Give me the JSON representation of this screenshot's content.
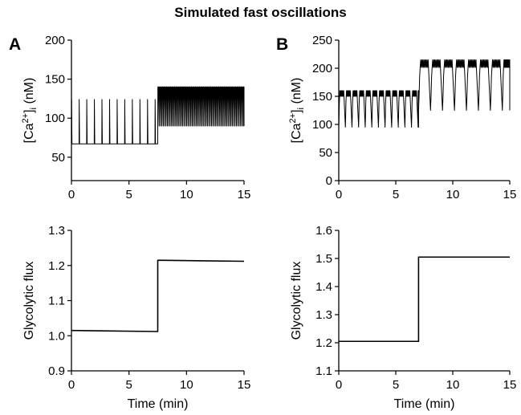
{
  "figure_title": "Simulated fast oscillations",
  "panel_labels": [
    "A",
    "B"
  ],
  "colors": {
    "line": "#000000",
    "background": "#ffffff"
  },
  "chart_data": [
    {
      "id": "A-top",
      "type": "line",
      "ylabel_main": "[Ca",
      "ylabel_sup": "2+",
      "ylabel_mid": "]",
      "ylabel_sub": "i",
      "ylabel_end": " (nM)",
      "xlabel": "",
      "xlim": [
        0,
        15
      ],
      "ylim": [
        20,
        200
      ],
      "xticks": [
        0,
        5,
        10,
        15
      ],
      "yticks": [
        50,
        100,
        150,
        200
      ],
      "series": [
        {
          "phases": [
            {
              "t_start": 0.0,
              "t_end": 7.5,
              "baseline": 67,
              "peak": 124,
              "period": 0.66,
              "burst_fraction": 0.07
            },
            {
              "t_start": 7.5,
              "t_end": 15.0,
              "baseline": 90,
              "peak": 140,
              "period": 0.12,
              "burst_fraction": 0.5
            }
          ]
        }
      ]
    },
    {
      "id": "B-top",
      "type": "line",
      "ylabel_main": "[Ca",
      "ylabel_sup": "2+",
      "ylabel_mid": "]",
      "ylabel_sub": "i",
      "ylabel_end": " (nM)",
      "xlabel": "",
      "xlim": [
        0,
        15
      ],
      "ylim": [
        0,
        250
      ],
      "xticks": [
        0,
        5,
        10,
        15
      ],
      "yticks": [
        0,
        50,
        100,
        150,
        200,
        250
      ],
      "series": [
        {
          "phases": [
            {
              "t_start": 0.0,
              "t_end": 7.0,
              "baseline": 95,
              "peak": 160,
              "period": 0.58,
              "burst_fraction": 0.75
            },
            {
              "t_start": 7.0,
              "t_end": 15.0,
              "baseline": 125,
              "peak": 215,
              "period": 1.05,
              "burst_fraction": 0.8
            }
          ]
        }
      ]
    },
    {
      "id": "A-bottom",
      "type": "line",
      "ylabel": "Glycolytic flux",
      "xlabel": "Time (min)",
      "xlim": [
        0,
        15
      ],
      "ylim": [
        0.9,
        1.3
      ],
      "xticks": [
        0,
        5,
        10,
        15
      ],
      "yticks": [
        0.9,
        1.0,
        1.1,
        1.2,
        1.3
      ],
      "series": [
        {
          "x": [
            0,
            7.5,
            7.5,
            15
          ],
          "y": [
            1.015,
            1.012,
            1.215,
            1.212
          ]
        }
      ]
    },
    {
      "id": "B-bottom",
      "type": "line",
      "ylabel": "Glycolytic flux",
      "xlabel": "Time (min)",
      "xlim": [
        0,
        15
      ],
      "ylim": [
        1.1,
        1.6
      ],
      "xticks": [
        0,
        5,
        10,
        15
      ],
      "yticks": [
        1.1,
        1.2,
        1.3,
        1.4,
        1.5,
        1.6
      ],
      "series": [
        {
          "x": [
            0,
            7.0,
            7.0,
            15
          ],
          "y": [
            1.205,
            1.205,
            1.505,
            1.505
          ]
        }
      ]
    }
  ]
}
